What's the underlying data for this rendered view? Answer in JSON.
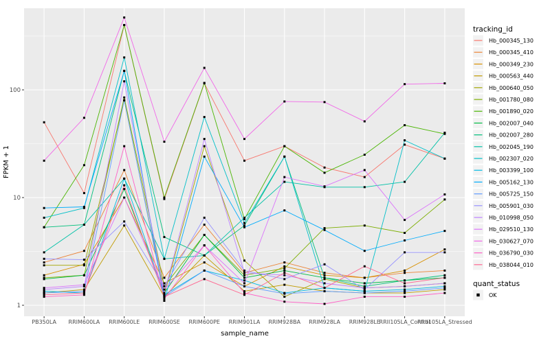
{
  "chart_data": {
    "type": "line",
    "title": "",
    "xlabel": "sample_name",
    "ylabel": "FPKM + 1",
    "y_scale": "log10",
    "y_ticks": [
      1,
      10,
      100
    ],
    "ylim": [
      1,
      570
    ],
    "grid": "on",
    "panel_color": "#EBEBEB",
    "grid_color": "#FFFFFF",
    "tick_label_color": "#4D4D4D",
    "point_color": "#000000",
    "categories": [
      "PB350LA",
      "RRIM600LA",
      "RRIM600LE",
      "RRIM600SE",
      "RRIM600PE",
      "RRIM901LA",
      "RRIM928BA",
      "RRIM928LA",
      "RRIM928LE",
      "RRII105LA_Control",
      "RRII105LA_Stressed"
    ],
    "series": [
      {
        "name": "Hb_000345_130",
        "color": "#F8766D",
        "values": [
          50,
          11,
          400,
          9.7,
          115,
          22,
          30,
          19,
          15.5,
          31,
          23
        ]
      },
      {
        "name": "Hb_000345_410",
        "color": "#EB8335",
        "values": [
          2.5,
          3.2,
          18,
          1.8,
          5.6,
          2.0,
          2.5,
          2.0,
          1.8,
          2.0,
          2.1
        ]
      },
      {
        "name": "Hb_000349_230",
        "color": "#D89000",
        "values": [
          1.9,
          2.4,
          10,
          1.6,
          2.5,
          1.5,
          2.3,
          1.9,
          1.8,
          2.1,
          3.3
        ]
      },
      {
        "name": "Hb_000563_440",
        "color": "#C09B00",
        "values": [
          1.3,
          1.4,
          5.5,
          1.2,
          2.9,
          1.35,
          1.55,
          1.35,
          1.3,
          1.3,
          1.4
        ]
      },
      {
        "name": "Hb_000640_050",
        "color": "#A3A500",
        "values": [
          2.35,
          2.35,
          80,
          1.25,
          30,
          2.6,
          1.2,
          1.75,
          1.45,
          1.5,
          1.6
        ]
      },
      {
        "name": "Hb_001780_080",
        "color": "#7CAE00",
        "values": [
          1.8,
          1.9,
          85,
          1.5,
          4.5,
          1.9,
          2.2,
          5.2,
          5.5,
          4.7,
          9.6
        ]
      },
      {
        "name": "Hb_001890_020",
        "color": "#49B500",
        "values": [
          5.3,
          20,
          400,
          10,
          116,
          6.3,
          30,
          17,
          25,
          47,
          39
        ]
      },
      {
        "name": "Hb_002007_040",
        "color": "#00BB44",
        "values": [
          1.75,
          1.9,
          12,
          1.3,
          4.5,
          1.8,
          2.1,
          1.8,
          1.6,
          1.7,
          1.8
        ]
      },
      {
        "name": "Hb_002007_280",
        "color": "#00BF7B",
        "values": [
          5.3,
          5.6,
          150,
          4.3,
          2.9,
          5.5,
          24,
          1.8,
          1.5,
          1.7,
          1.9
        ]
      },
      {
        "name": "Hb_002045_190",
        "color": "#00C1A7",
        "values": [
          3.1,
          5.6,
          15,
          2.7,
          2.9,
          6.5,
          14,
          12.5,
          12.5,
          14,
          40
        ]
      },
      {
        "name": "Hb_002307_020",
        "color": "#00BFC8",
        "values": [
          6.5,
          8,
          200,
          2.7,
          56,
          5.8,
          24,
          1.45,
          1.35,
          34,
          23
        ]
      },
      {
        "name": "Hb_003399_100",
        "color": "#00B9E3",
        "values": [
          1.35,
          1.3,
          15,
          1.25,
          2.1,
          1.7,
          1.3,
          1.45,
          1.35,
          1.4,
          1.5
        ]
      },
      {
        "name": "Hb_005162_130",
        "color": "#00ACFC",
        "values": [
          8,
          8.2,
          150,
          1.1,
          24,
          5.3,
          7.6,
          5.0,
          3.2,
          4.0,
          4.9
        ]
      },
      {
        "name": "Hb_005725_150",
        "color": "#619CFF",
        "values": [
          1.3,
          1.35,
          80,
          1.2,
          2.1,
          1.5,
          1.28,
          1.35,
          1.3,
          1.35,
          1.45
        ]
      },
      {
        "name": "Hb_005901_030",
        "color": "#9590FF",
        "values": [
          2.7,
          2.65,
          6,
          1.5,
          6.5,
          2.1,
          1.75,
          2.4,
          1.4,
          3.1,
          3.1
        ]
      },
      {
        "name": "Hb_010998_050",
        "color": "#BC81FF",
        "values": [
          1.4,
          1.5,
          120,
          1.3,
          35,
          2.0,
          1.9,
          1.6,
          1.45,
          1.5,
          1.6
        ]
      },
      {
        "name": "Hb_029510_130",
        "color": "#DB72FB",
        "values": [
          1.45,
          1.55,
          10,
          1.4,
          3.6,
          1.6,
          15.5,
          12.7,
          18,
          6.2,
          10.7
        ]
      },
      {
        "name": "Hb_030627_070",
        "color": "#F167E8",
        "values": [
          22,
          55,
          470,
          33,
          160,
          35,
          78,
          77,
          51,
          113,
          115
        ]
      },
      {
        "name": "Hb_036790_030",
        "color": "#FF61C7",
        "values": [
          1.2,
          1.25,
          30,
          1.15,
          3.6,
          1.3,
          1.08,
          1.03,
          1.2,
          1.2,
          1.3
        ]
      },
      {
        "name": "Hb_038044_010",
        "color": "#FF6690",
        "values": [
          1.25,
          1.3,
          13,
          1.2,
          1.75,
          1.25,
          2.0,
          1.45,
          2.3,
          1.6,
          1.8
        ]
      }
    ],
    "legend": {
      "title": "tracking_id",
      "position": "right"
    },
    "quant_legend": {
      "title": "quant_status",
      "entries": [
        "OK"
      ]
    }
  }
}
